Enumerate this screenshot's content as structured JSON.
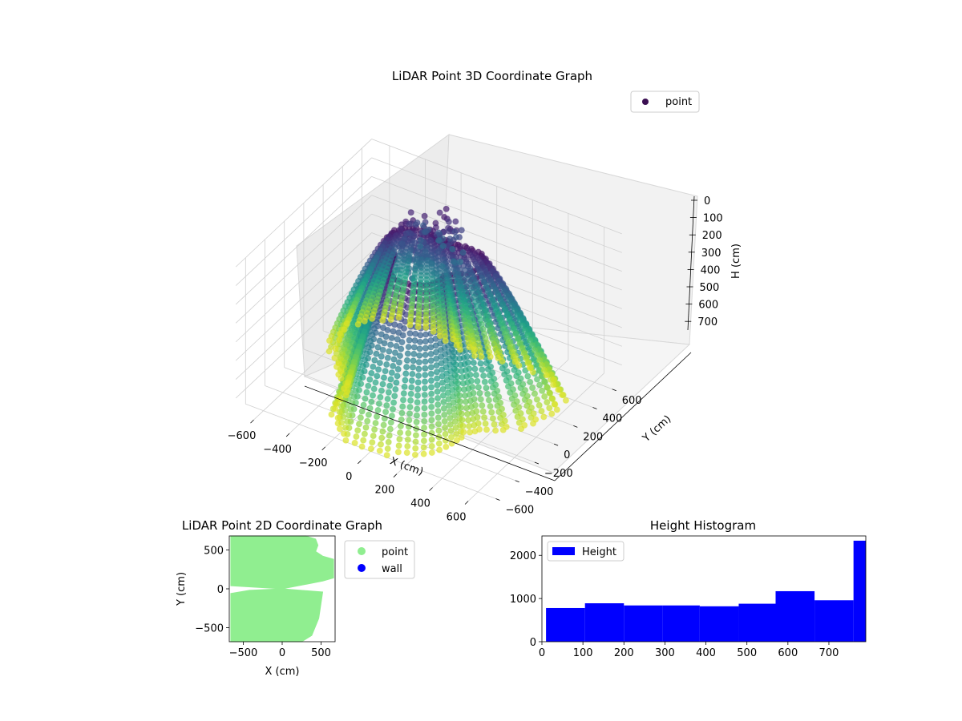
{
  "chart_data": [
    {
      "type": "scatter3d",
      "title": "LiDAR Point 3D Coordinate Graph",
      "xlabel": "X (cm)",
      "ylabel": "Y (cm)",
      "zlabel": "H (cm)",
      "xlim": [
        -700,
        700
      ],
      "ylim": [
        -700,
        700
      ],
      "zlim": [
        0,
        780
      ],
      "z_inverted": true,
      "xticks": [
        "−600",
        "−400",
        "−200",
        "0",
        "200",
        "400",
        "600"
      ],
      "yticks": [
        "−600",
        "−400",
        "−200",
        "0",
        "200",
        "400",
        "600"
      ],
      "zticks": [
        "0",
        "100",
        "200",
        "300",
        "400",
        "500",
        "600",
        "700"
      ],
      "colormap": "viridis",
      "legend": {
        "entries": [
          "point"
        ],
        "placement": "upper-right"
      },
      "grid": true
    },
    {
      "type": "scatter",
      "title": "LiDAR Point 2D Coordinate Graph",
      "xlabel": "X (cm)",
      "ylabel": "Y (cm)",
      "xlim": [
        -680,
        680
      ],
      "ylim": [
        -680,
        680
      ],
      "xticks": [
        "−500",
        "0",
        "500"
      ],
      "yticks": [
        "−500",
        "0",
        "500"
      ],
      "series": [
        {
          "name": "point",
          "color": "#90ee90"
        },
        {
          "name": "wall",
          "color": "#0000ff"
        }
      ],
      "legend": {
        "placement": "outside-upper-right"
      }
    },
    {
      "type": "bar",
      "title": "Height Histogram",
      "xlabel": "",
      "ylabel": "",
      "bins": [
        [
          10,
          105
        ],
        [
          105,
          200
        ],
        [
          200,
          295
        ],
        [
          295,
          385
        ],
        [
          385,
          480
        ],
        [
          480,
          570
        ],
        [
          570,
          665
        ],
        [
          665,
          760
        ],
        [
          760,
          790
        ]
      ],
      "values": [
        780,
        890,
        840,
        840,
        820,
        880,
        1170,
        960,
        2340
      ],
      "xlim": [
        0,
        790
      ],
      "ylim": [
        0,
        2450
      ],
      "xticks": [
        "0",
        "100",
        "200",
        "300",
        "400",
        "500",
        "600",
        "700"
      ],
      "yticks": [
        "0",
        "1000",
        "2000"
      ],
      "series": [
        {
          "name": "Height",
          "color": "#0000ff"
        }
      ],
      "legend": {
        "placement": "upper-left"
      }
    }
  ]
}
